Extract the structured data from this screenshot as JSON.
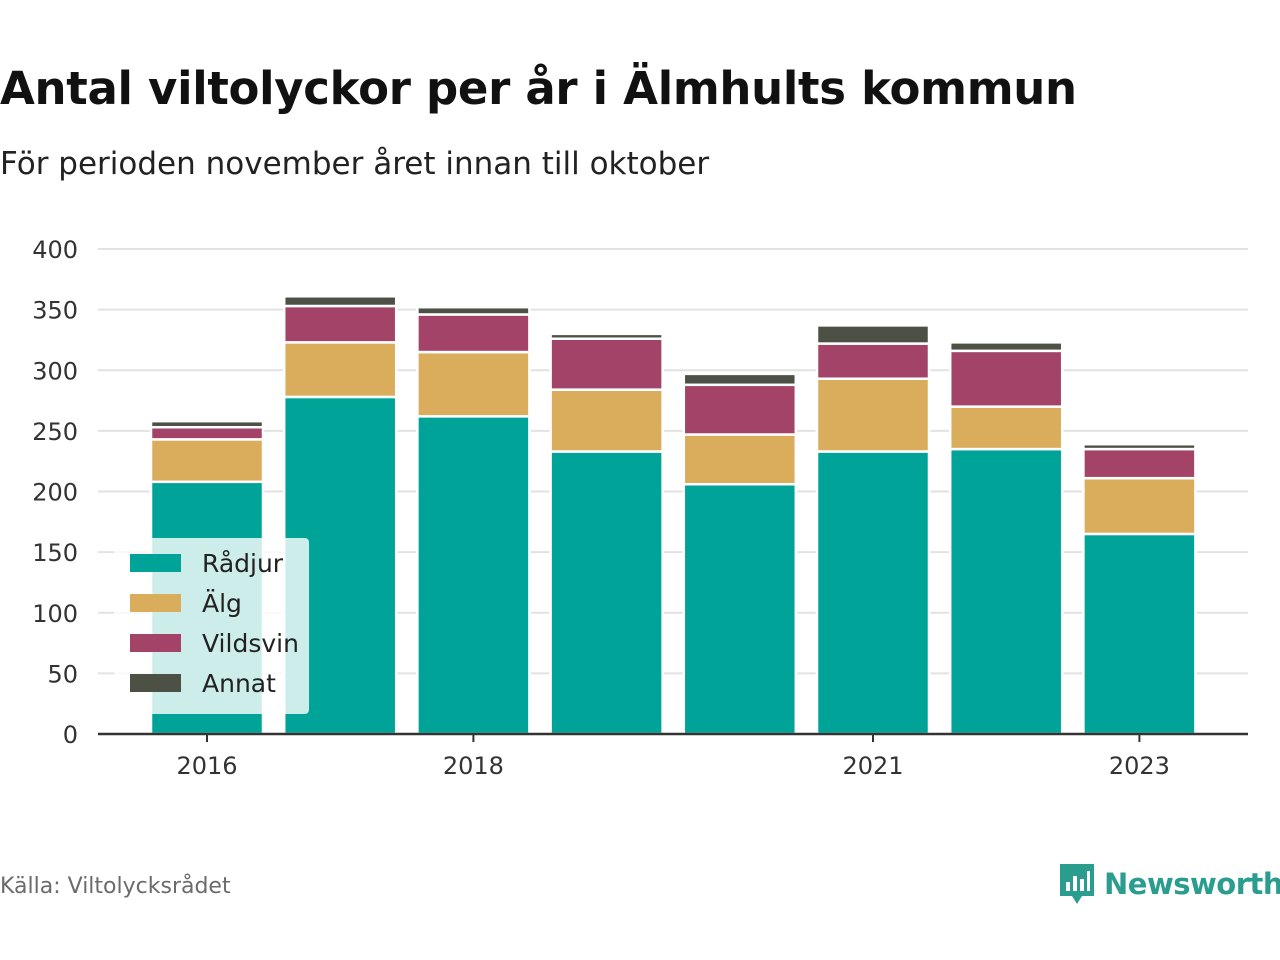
{
  "header": {
    "title": "Antal viltolyckor per år i Älmhults kommun",
    "subtitle": "För perioden november året innan till oktober"
  },
  "footer": {
    "source": "Källa: Viltolycksrådet",
    "brand": "Newsworthy",
    "brand_icon": "bar-chart-logo-icon"
  },
  "colors": {
    "Rådjur": "#00a398",
    "Älg": "#d9ad5b",
    "Vildsvin": "#a34367",
    "Annat": "#4d5045",
    "grid": "#e2e2e2",
    "axis": "#333333",
    "brand": "#2a9d8f"
  },
  "chart_data": {
    "type": "bar",
    "stacked": true,
    "categories": [
      "2016",
      "2017",
      "2018",
      "2019",
      "2020",
      "2021",
      "2022",
      "2023"
    ],
    "x_tick_labels": [
      "2016",
      "2018",
      "2021",
      "2023"
    ],
    "series": [
      {
        "name": "Rådjur",
        "values": [
          208,
          278,
          262,
          233,
          206,
          233,
          235,
          165
        ]
      },
      {
        "name": "Älg",
        "values": [
          35,
          45,
          53,
          51,
          41,
          60,
          35,
          46
        ]
      },
      {
        "name": "Vildsvin",
        "values": [
          10,
          30,
          31,
          42,
          41,
          29,
          46,
          24
        ]
      },
      {
        "name": "Annat",
        "values": [
          5,
          8,
          6,
          4,
          9,
          15,
          7,
          4
        ]
      }
    ],
    "y_ticks": [
      0,
      50,
      100,
      150,
      200,
      250,
      300,
      350,
      400
    ],
    "ylim": [
      0,
      400
    ],
    "grid": true,
    "legend_position": "bottom-left"
  }
}
